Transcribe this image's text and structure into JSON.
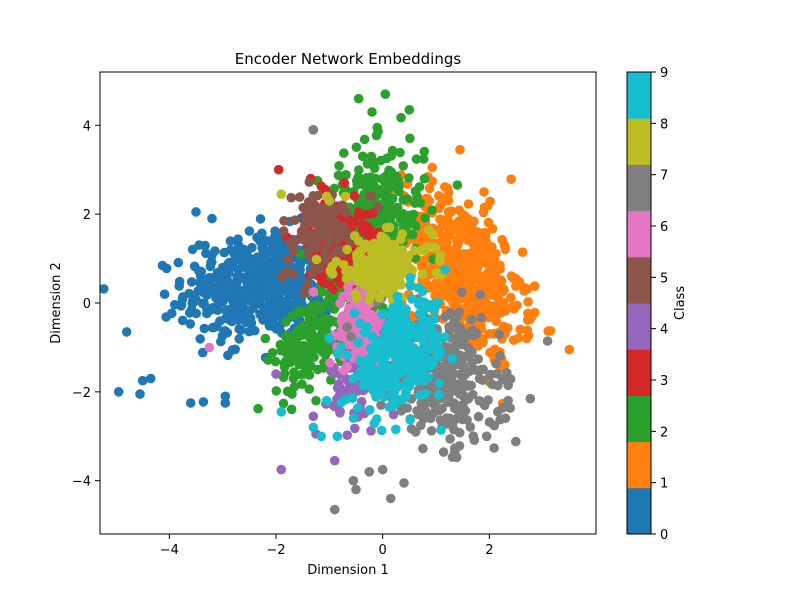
{
  "chart_data": {
    "type": "scatter",
    "title": "Encoder Network Embeddings",
    "xlabel": "Dimension 1",
    "ylabel": "Dimension 2",
    "xlim": [
      -5.3,
      4.0
    ],
    "ylim": [
      -5.2,
      5.2
    ],
    "xticks": [
      -4,
      -2,
      0,
      2
    ],
    "yticks": [
      -4,
      -2,
      0,
      2,
      4
    ],
    "xtick_labels": [
      "−4",
      "−2",
      "0",
      "2"
    ],
    "ytick_labels": [
      "−4",
      "−2",
      "0",
      "2",
      "4"
    ],
    "grid": false,
    "legend": "none",
    "colorbar": {
      "label": "Class",
      "range": [
        0,
        9
      ],
      "ticks": [
        0,
        1,
        2,
        3,
        4,
        5,
        6,
        7,
        8,
        9
      ],
      "colors": [
        "#1f77b4",
        "#ff7f0e",
        "#2ca02c",
        "#d62728",
        "#9467bd",
        "#8c564b",
        "#e377c2",
        "#7f7f7f",
        "#bcbd22",
        "#17becf"
      ]
    },
    "series": [
      {
        "class": 0,
        "center": [
          -2.2,
          0.4
        ],
        "spread": [
          0.75,
          0.6
        ],
        "corr": 0.15,
        "count": 550,
        "outliers": [
          [
            -4.95,
            -2.0
          ],
          [
            -4.55,
            -2.05
          ],
          [
            -4.5,
            -1.75
          ],
          [
            -4.35,
            -1.7
          ],
          [
            -3.5,
            2.05
          ],
          [
            -3.6,
            -2.25
          ],
          [
            -2.95,
            -2.1
          ],
          [
            -2.95,
            -2.25
          ],
          [
            -3.2,
            1.9
          ],
          [
            -4.8,
            -0.65
          ]
        ]
      },
      {
        "class": 1,
        "center": [
          1.5,
          0.7
        ],
        "spread": [
          0.55,
          0.9
        ],
        "corr": -0.45,
        "count": 520,
        "outliers": [
          [
            3.5,
            -1.05
          ],
          [
            2.65,
            0.35
          ],
          [
            2.85,
            0.38
          ],
          [
            2.8,
            -0.3
          ],
          [
            2.7,
            -0.8
          ],
          [
            1.45,
            3.45
          ],
          [
            1.9,
            2.5
          ]
        ]
      },
      {
        "class": 2,
        "center": [
          -0.2,
          1.7
        ],
        "spread": [
          0.5,
          0.9
        ],
        "corr": 0.2,
        "count": 360,
        "outliers": [
          [
            -0.45,
            4.6
          ],
          [
            0.05,
            4.7
          ],
          [
            0.5,
            4.35
          ],
          [
            -0.2,
            4.3
          ],
          [
            -1.25,
            -2.2
          ],
          [
            -1.7,
            -2.05
          ],
          [
            -2.2,
            -0.8
          ],
          [
            -1.65,
            -1.65
          ]
        ]
      },
      {
        "class": 2,
        "center": [
          -1.3,
          -0.8
        ],
        "spread": [
          0.35,
          0.55
        ],
        "corr": 0.4,
        "count": 180,
        "outliers": []
      },
      {
        "class": 3,
        "center": [
          -0.75,
          1.3
        ],
        "spread": [
          0.35,
          0.5
        ],
        "corr": -0.2,
        "count": 240,
        "outliers": [
          [
            -1.95,
            3.0
          ],
          [
            -1.35,
            2.8
          ],
          [
            -1.2,
            2.0
          ]
        ]
      },
      {
        "class": 4,
        "center": [
          -0.25,
          -1.4
        ],
        "spread": [
          0.35,
          0.55
        ],
        "corr": 0.35,
        "count": 170,
        "outliers": [
          [
            -1.9,
            -3.75
          ],
          [
            -0.9,
            -3.55
          ],
          [
            -1.25,
            -2.95
          ],
          [
            -2.0,
            -1.6
          ],
          [
            -1.3,
            -2.55
          ]
        ]
      },
      {
        "class": 5,
        "center": [
          -1.2,
          1.6
        ],
        "spread": [
          0.4,
          0.5
        ],
        "corr": 0.2,
        "count": 110,
        "outliers": [
          [
            -1.3,
            3.9
          ],
          [
            -1.85,
            1.85
          ]
        ]
      },
      {
        "class": 6,
        "center": [
          -0.4,
          -0.45
        ],
        "spread": [
          0.22,
          0.45
        ],
        "corr": 0.1,
        "count": 150,
        "outliers": [
          [
            -1.3,
            0.25
          ],
          [
            -3.25,
            -1.0
          ]
        ]
      },
      {
        "class": 7,
        "center": [
          1.1,
          -1.6
        ],
        "spread": [
          0.55,
          0.75
        ],
        "corr": -0.3,
        "count": 340,
        "outliers": [
          [
            -0.9,
            -4.65
          ],
          [
            -0.5,
            -4.2
          ],
          [
            0.15,
            -4.4
          ],
          [
            0.4,
            -4.05
          ],
          [
            1.95,
            -3.0
          ],
          [
            0.0,
            -3.75
          ],
          [
            -0.25,
            -3.8
          ],
          [
            -0.55,
            -4.0
          ],
          [
            -1.3,
            3.9
          ]
        ]
      },
      {
        "class": 8,
        "center": [
          0.0,
          0.8
        ],
        "spread": [
          0.45,
          0.35
        ],
        "corr": 0.1,
        "count": 200,
        "outliers": [
          [
            -1.9,
            2.45
          ],
          [
            -1.05,
            2.4
          ],
          [
            -0.7,
            2.4
          ],
          [
            -1.0,
            2.3
          ]
        ]
      },
      {
        "class": 9,
        "center": [
          0.35,
          -1.2
        ],
        "spread": [
          0.45,
          0.6
        ],
        "corr": 0.3,
        "count": 280,
        "outliers": [
          [
            -1.9,
            -2.45
          ],
          [
            -1.3,
            -2.8
          ],
          [
            -1.15,
            -3.0
          ],
          [
            -1.05,
            -2.2
          ],
          [
            -0.85,
            -3.0
          ]
        ]
      }
    ]
  }
}
